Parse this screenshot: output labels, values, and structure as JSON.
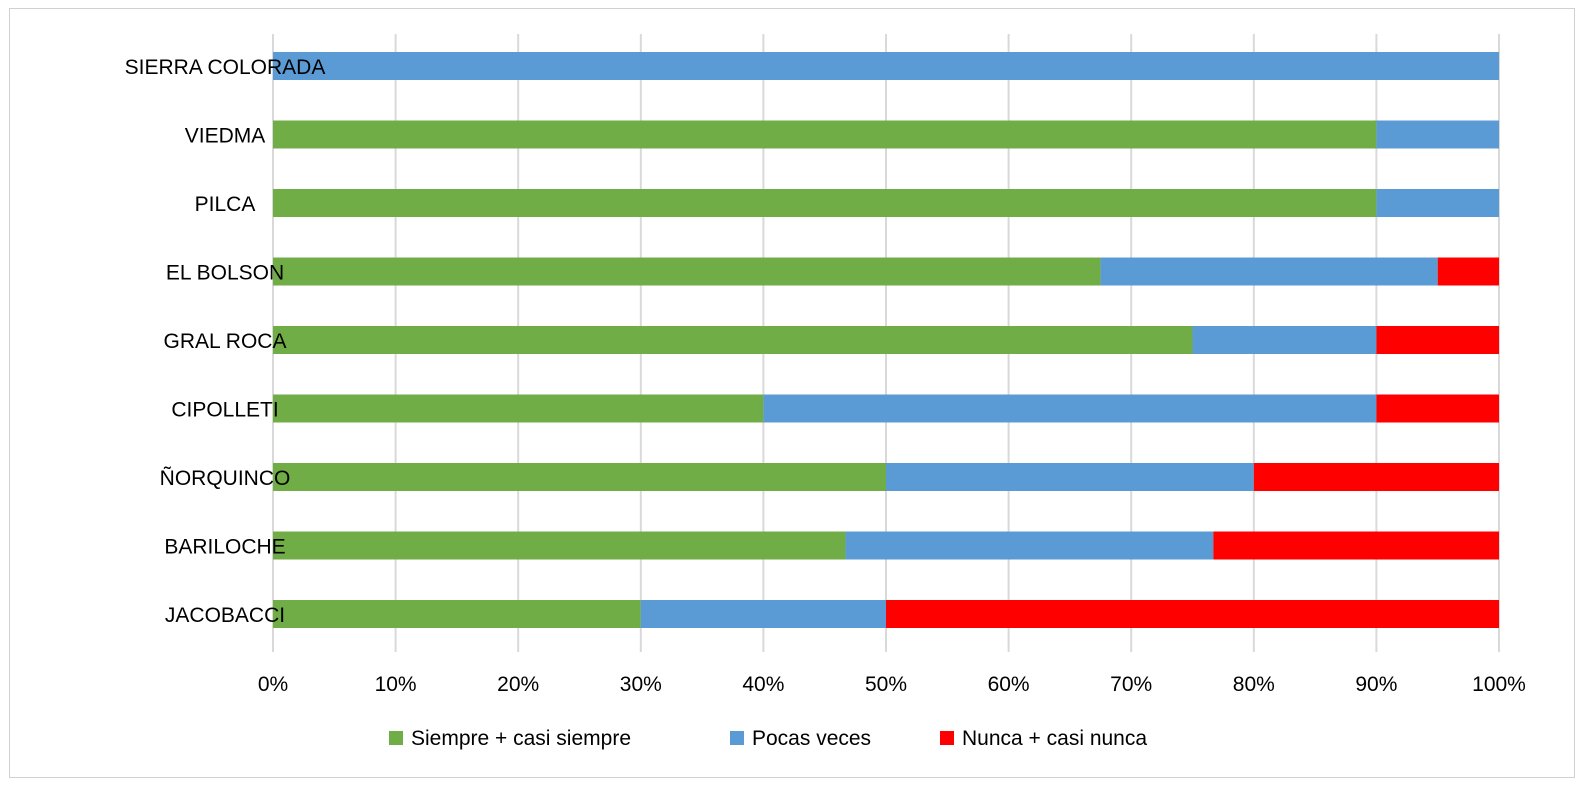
{
  "chart_data": {
    "type": "bar",
    "orientation": "horizontal",
    "stacked": true,
    "percent_stacked": true,
    "categories": [
      "SIERRA COLORADA",
      "VIEDMA",
      "PILCA",
      "EL BOLSON",
      "GRAL ROCA",
      "CIPOLLETI",
      "ÑORQUINCO",
      "BARILOCHE",
      "JACOBACCI"
    ],
    "series": [
      {
        "name": "Siempre + casi siempre",
        "color": "#70AD47",
        "values": [
          0,
          90,
          90,
          67.5,
          75,
          40,
          50,
          46.7,
          30
        ]
      },
      {
        "name": "Pocas veces",
        "color": "#5B9BD5",
        "values": [
          100,
          10,
          10,
          27.5,
          15,
          50,
          30,
          30,
          20
        ]
      },
      {
        "name": "Nunca + casi nunca",
        "color": "#FF0000",
        "values": [
          0,
          0,
          0,
          5,
          10,
          10,
          20,
          23.3,
          50
        ]
      }
    ],
    "xlim": [
      0,
      100
    ],
    "x_ticks": [
      "0%",
      "10%",
      "20%",
      "30%",
      "40%",
      "50%",
      "60%",
      "70%",
      "80%",
      "90%",
      "100%"
    ],
    "grid": true,
    "grid_color": "#D9D9D9",
    "legend_position": "bottom",
    "title": "",
    "xlabel": "",
    "ylabel": ""
  }
}
